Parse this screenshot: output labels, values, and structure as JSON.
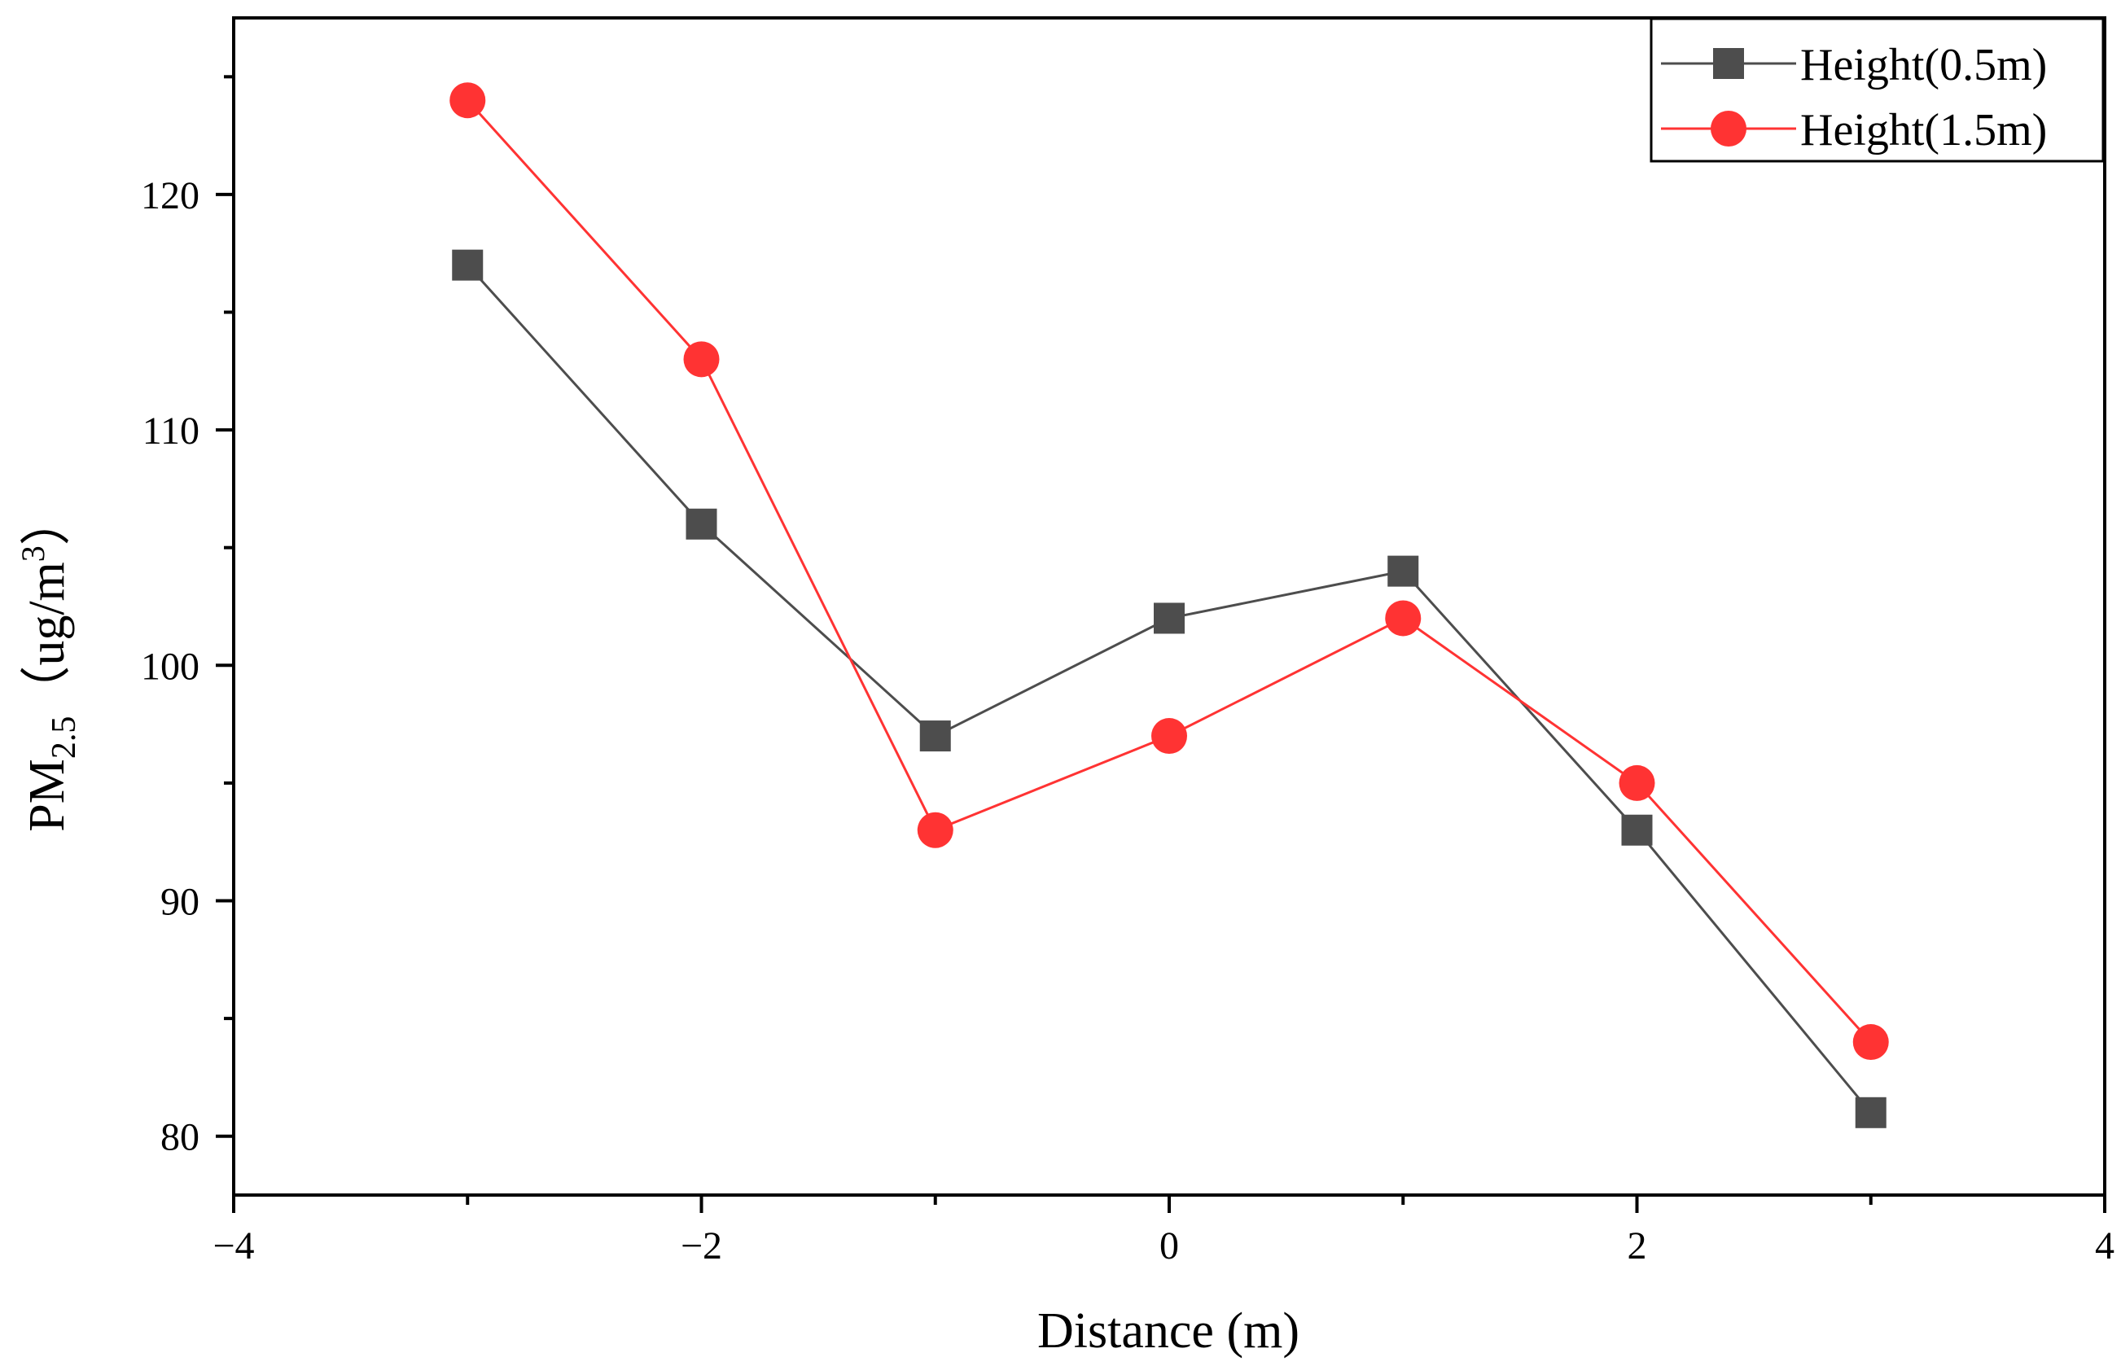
{
  "chart_data": {
    "type": "line",
    "title": "",
    "xlabel": "Distance (m)",
    "ylabel": {
      "base": "PM",
      "subscript": "2.5",
      "unit_open": "（ug/m",
      "superscript": "3",
      "unit_close": "）"
    },
    "xlim": [
      -4,
      4
    ],
    "ylim": [
      77.5,
      127.5
    ],
    "x_ticks": [
      -4,
      -2,
      0,
      2,
      4
    ],
    "x_tick_labels": [
      "−4",
      "−2",
      "0",
      "2",
      "4"
    ],
    "y_ticks": [
      80,
      90,
      100,
      110,
      120
    ],
    "y_tick_labels": [
      "80",
      "90",
      "100",
      "110",
      "120"
    ],
    "grid": false,
    "legend_position": "top-right",
    "x": [
      -3,
      -2,
      -1,
      0,
      1,
      2,
      3
    ],
    "series": [
      {
        "name": "Height(0.5m)",
        "marker": "square",
        "color": "#4d4d4d",
        "values": [
          117,
          106,
          97,
          102,
          104,
          93,
          81
        ]
      },
      {
        "name": "Height(1.5m)",
        "marker": "circle",
        "color": "#ff3333",
        "values": [
          124,
          113,
          93,
          97,
          102,
          95,
          84
        ]
      }
    ]
  }
}
